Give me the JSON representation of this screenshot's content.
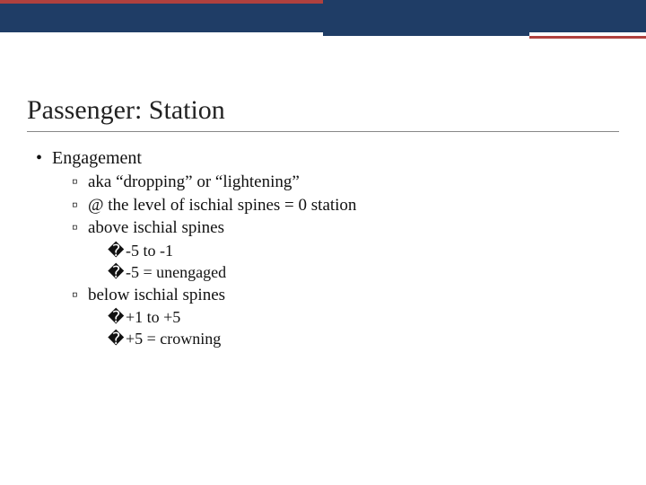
{
  "colors": {
    "bar": "#1f3d66",
    "accent": "#b0413e",
    "text": "#111111",
    "background": "#ffffff",
    "rule": "#888888"
  },
  "title": "Passenger: Station",
  "l1": {
    "bullet": "•",
    "text": "Engagement"
  },
  "l2a": {
    "bullet": "▫",
    "text": "aka “dropping” or “lightening”"
  },
  "l2b": {
    "bullet": "▫",
    "text": "@ the level of ischial spines = 0 station"
  },
  "l2c": {
    "bullet": "▫",
    "text": "above ischial spines"
  },
  "l3a": {
    "bullet": "�",
    "text": "-5 to -1"
  },
  "l3b": {
    "bullet": "�",
    "text": "-5 = unengaged"
  },
  "l2d": {
    "bullet": "▫",
    "text": "below ischial spines"
  },
  "l3c": {
    "bullet": "�",
    "text": "+1 to +5"
  },
  "l3d": {
    "bullet": "�",
    "text": "+5 = crowning"
  }
}
